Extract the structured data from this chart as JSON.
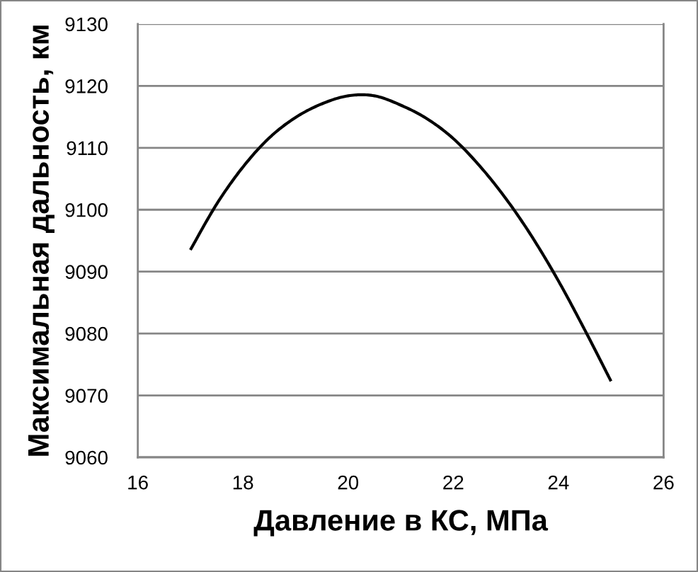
{
  "chart_data": {
    "type": "line",
    "xlabel": "Давление в КС, МПа",
    "ylabel": "Максимальная дальность, км",
    "x": [
      17.0,
      17.5,
      18.0,
      18.5,
      19.0,
      19.5,
      20.0,
      20.5,
      21.0,
      21.5,
      22.0,
      22.5,
      23.0,
      23.5,
      24.0,
      24.5,
      25.0
    ],
    "series": [
      {
        "color": "#000000",
        "values": [
          9093.5,
          9100.9,
          9106.9,
          9111.6,
          9114.9,
          9117.1,
          9118.4,
          9118.4,
          9116.9,
          9114.7,
          9111.5,
          9107.1,
          9101.8,
          9095.6,
          9088.5,
          9080.6,
          9072.3
        ]
      }
    ],
    "xlim": [
      16,
      26
    ],
    "xticks": [
      16,
      18,
      20,
      22,
      24,
      26
    ],
    "ylim": [
      9060,
      9130
    ],
    "yticks": [
      9060,
      9070,
      9080,
      9090,
      9100,
      9110,
      9120,
      9130
    ],
    "grid": "y"
  }
}
